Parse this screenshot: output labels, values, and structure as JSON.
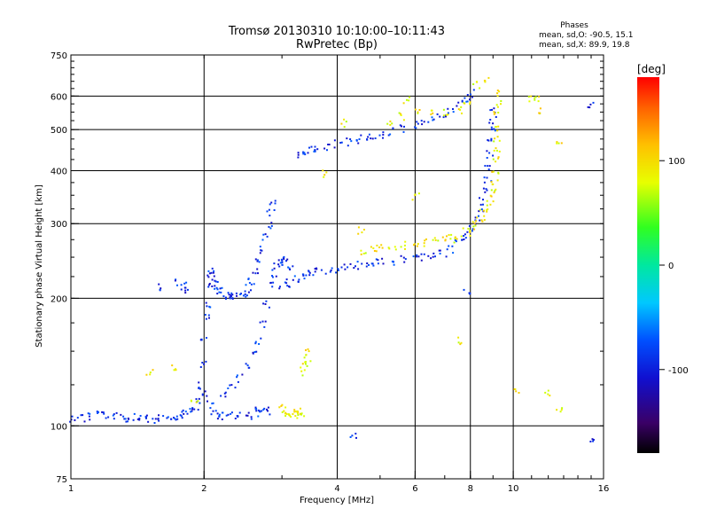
{
  "chart_data": {
    "type": "scatter",
    "title": "Tromsø 20130310 10:10:00–10:11:43",
    "subtitle": "RwPretec (Bp)",
    "xlabel": "Frequency [MHz]",
    "ylabel": "Stationary phase Virtual Height [km]",
    "x_scale": "log2",
    "y_scale": "log",
    "xlim": [
      1,
      16
    ],
    "ylim": [
      75,
      750
    ],
    "x_ticks": [
      1,
      2,
      4,
      6,
      8,
      10,
      16
    ],
    "y_ticks": [
      75,
      100,
      200,
      300,
      400,
      500,
      600,
      750
    ],
    "grid_x": [
      2,
      4,
      6,
      8,
      10
    ],
    "grid_y": [
      100,
      200,
      300,
      400,
      500,
      600
    ],
    "grid": true,
    "stats": {
      "title": "Phases",
      "o_label": "mean, sd,O:",
      "o_mean": -90.5,
      "o_sd": 15.1,
      "x_label": "mean, sd,X:",
      "x_mean": 89.9,
      "x_sd": 19.8
    },
    "colorbar": {
      "label": "[deg]",
      "range": [
        -180,
        180
      ],
      "ticks": [
        100,
        0,
        -100
      ]
    },
    "series": [
      {
        "mode": "O",
        "mean_phase": -90.5,
        "points": [
          [
            1.0,
            104
          ],
          [
            1.05,
            105
          ],
          [
            1.1,
            106
          ],
          [
            1.15,
            107
          ],
          [
            1.2,
            106
          ],
          [
            1.25,
            106
          ],
          [
            1.3,
            106
          ],
          [
            1.35,
            105
          ],
          [
            1.4,
            105
          ],
          [
            1.45,
            104
          ],
          [
            1.5,
            104
          ],
          [
            1.55,
            104
          ],
          [
            1.6,
            105
          ],
          [
            1.65,
            105
          ],
          [
            1.7,
            106
          ],
          [
            1.75,
            106
          ],
          [
            1.8,
            107
          ],
          [
            1.85,
            108
          ],
          [
            1.9,
            110
          ],
          [
            1.95,
            114
          ],
          [
            2.0,
            120
          ],
          [
            2.05,
            113
          ],
          [
            2.1,
            108
          ],
          [
            2.15,
            106
          ],
          [
            2.2,
            106
          ],
          [
            2.3,
            106
          ],
          [
            2.4,
            106
          ],
          [
            2.5,
            106
          ],
          [
            2.6,
            107
          ],
          [
            2.7,
            108
          ],
          [
            2.8,
            109
          ],
          [
            1.95,
            125
          ],
          [
            1.98,
            140
          ],
          [
            2.0,
            160
          ],
          [
            2.02,
            180
          ],
          [
            2.03,
            195
          ],
          [
            2.05,
            215
          ],
          [
            2.05,
            232
          ],
          [
            2.08,
            228
          ],
          [
            2.1,
            222
          ],
          [
            2.12,
            215
          ],
          [
            2.15,
            210
          ],
          [
            2.2,
            206
          ],
          [
            2.25,
            203
          ],
          [
            2.3,
            202
          ],
          [
            2.35,
            202
          ],
          [
            2.4,
            203
          ],
          [
            2.45,
            206
          ],
          [
            2.5,
            212
          ],
          [
            2.55,
            220
          ],
          [
            2.6,
            232
          ],
          [
            2.65,
            245
          ],
          [
            2.7,
            262
          ],
          [
            2.75,
            280
          ],
          [
            2.8,
            300
          ],
          [
            2.82,
            320
          ],
          [
            2.85,
            340
          ],
          [
            2.2,
            120
          ],
          [
            2.3,
            125
          ],
          [
            2.4,
            130
          ],
          [
            2.5,
            138
          ],
          [
            2.6,
            148
          ],
          [
            2.65,
            160
          ],
          [
            2.7,
            175
          ],
          [
            2.75,
            195
          ],
          [
            2.8,
            215
          ],
          [
            2.85,
            230
          ],
          [
            2.9,
            240
          ],
          [
            2.95,
            245
          ],
          [
            3.0,
            248
          ],
          [
            3.05,
            245
          ],
          [
            3.1,
            240
          ],
          [
            1.75,
            218
          ],
          [
            1.78,
            215
          ],
          [
            1.8,
            210
          ],
          [
            3.0,
            215
          ],
          [
            3.1,
            218
          ],
          [
            3.2,
            222
          ],
          [
            3.3,
            225
          ],
          [
            3.4,
            228
          ],
          [
            3.5,
            230
          ],
          [
            3.6,
            232
          ],
          [
            3.8,
            234
          ],
          [
            4.0,
            236
          ],
          [
            4.2,
            238
          ],
          [
            4.4,
            240
          ],
          [
            4.6,
            242
          ],
          [
            4.8,
            244
          ],
          [
            5.0,
            245
          ],
          [
            5.3,
            246
          ],
          [
            5.6,
            248
          ],
          [
            6.0,
            250
          ],
          [
            6.3,
            252
          ],
          [
            6.6,
            254
          ],
          [
            6.9,
            257
          ],
          [
            7.2,
            262
          ],
          [
            7.5,
            270
          ],
          [
            7.8,
            282
          ],
          [
            8.0,
            292
          ],
          [
            8.2,
            305
          ],
          [
            8.35,
            320
          ],
          [
            8.5,
            340
          ],
          [
            8.6,
            360
          ],
          [
            8.7,
            385
          ],
          [
            8.75,
            410
          ],
          [
            8.8,
            440
          ],
          [
            8.85,
            470
          ],
          [
            8.9,
            500
          ],
          [
            8.92,
            530
          ],
          [
            8.95,
            560
          ],
          [
            3.3,
            440
          ],
          [
            3.4,
            445
          ],
          [
            3.5,
            448
          ],
          [
            3.6,
            452
          ],
          [
            3.8,
            458
          ],
          [
            4.0,
            465
          ],
          [
            4.2,
            470
          ],
          [
            4.4,
            475
          ],
          [
            4.6,
            480
          ],
          [
            4.8,
            485
          ],
          [
            5.0,
            490
          ],
          [
            5.3,
            496
          ],
          [
            5.6,
            505
          ],
          [
            6.0,
            515
          ],
          [
            6.3,
            525
          ],
          [
            6.6,
            535
          ],
          [
            6.9,
            548
          ],
          [
            7.2,
            560
          ],
          [
            7.5,
            575
          ],
          [
            7.8,
            592
          ],
          [
            8.0,
            612
          ],
          [
            1.6,
            214
          ],
          [
            2.65,
            110
          ],
          [
            4.35,
            95
          ],
          [
            7.8,
            210
          ],
          [
            15.0,
            575
          ],
          [
            15.0,
            92
          ]
        ]
      },
      {
        "mode": "X",
        "mean_phase": 89.9,
        "points": [
          [
            3.0,
            112
          ],
          [
            3.05,
            108
          ],
          [
            3.1,
            106
          ],
          [
            3.15,
            107
          ],
          [
            3.2,
            110
          ],
          [
            3.25,
            108
          ],
          [
            3.3,
            106
          ],
          [
            3.35,
            108
          ],
          [
            3.3,
            135
          ],
          [
            3.35,
            140
          ],
          [
            3.4,
            145
          ],
          [
            3.45,
            150
          ],
          [
            4.6,
            258
          ],
          [
            4.8,
            262
          ],
          [
            5.0,
            264
          ],
          [
            5.3,
            266
          ],
          [
            5.6,
            268
          ],
          [
            6.0,
            270
          ],
          [
            6.3,
            272
          ],
          [
            6.6,
            274
          ],
          [
            6.9,
            276
          ],
          [
            7.2,
            278
          ],
          [
            7.5,
            282
          ],
          [
            7.8,
            288
          ],
          [
            8.0,
            293
          ],
          [
            8.2,
            300
          ],
          [
            8.4,
            308
          ],
          [
            8.55,
            318
          ],
          [
            8.7,
            330
          ],
          [
            8.8,
            345
          ],
          [
            8.9,
            360
          ],
          [
            9.0,
            380
          ],
          [
            9.05,
            400
          ],
          [
            9.1,
            425
          ],
          [
            9.12,
            450
          ],
          [
            9.14,
            480
          ],
          [
            9.15,
            510
          ],
          [
            9.16,
            545
          ],
          [
            9.16,
            580
          ],
          [
            9.17,
            615
          ],
          [
            4.1,
            520
          ],
          [
            5.2,
            520
          ],
          [
            5.6,
            540
          ],
          [
            6.0,
            550
          ],
          [
            6.5,
            548
          ],
          [
            7.0,
            552
          ],
          [
            7.5,
            560
          ],
          [
            7.8,
            575
          ],
          [
            8.2,
            640
          ],
          [
            8.6,
            655
          ],
          [
            1.5,
            135
          ],
          [
            1.7,
            137
          ],
          [
            1.9,
            115
          ],
          [
            3.7,
            395
          ],
          [
            4.5,
            290
          ],
          [
            5.7,
            590
          ],
          [
            6.0,
            350
          ],
          [
            7.5,
            160
          ],
          [
            10.2,
            120
          ],
          [
            11.2,
            590
          ],
          [
            11.5,
            560
          ],
          [
            12.0,
            120
          ],
          [
            12.6,
            470
          ],
          [
            12.7,
            110
          ],
          [
            11.0,
            590
          ]
        ]
      }
    ]
  }
}
